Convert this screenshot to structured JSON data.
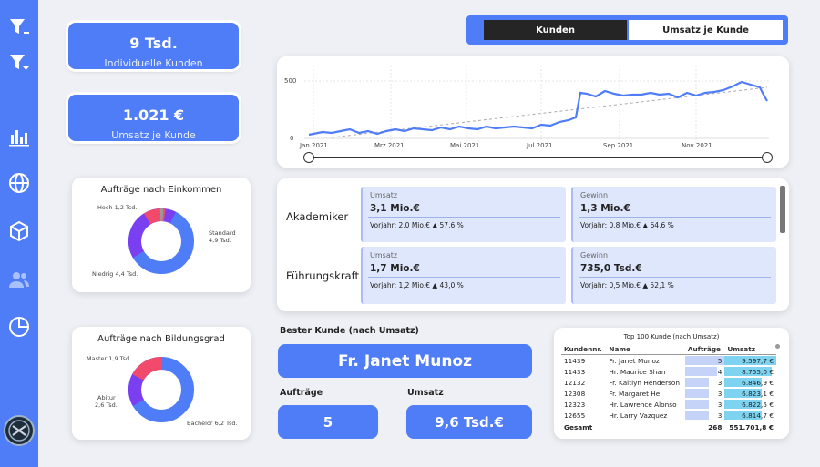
{
  "colors": {
    "accent": "#4f7cf7",
    "donut_blue": "#4f7cf7",
    "donut_purple": "#7b3ff2",
    "donut_red": "#f24a6b",
    "donut_gray": "#999999"
  },
  "sidebar": {
    "icons": [
      "filter-clear-icon",
      "filter-dropdown-icon",
      "bar-chart-icon",
      "globe-icon",
      "cube-icon",
      "users-icon",
      "pie-chart-icon"
    ]
  },
  "kpis": [
    {
      "value": "9 Tsd.",
      "label": "Individuelle Kunden"
    },
    {
      "value": "1.021 €",
      "label": "Umsatz je Kunde"
    }
  ],
  "toggle": {
    "active": "Kunden",
    "inactive": "Umsatz je Kunde"
  },
  "line_chart": {
    "y_ticks": [
      "500",
      "0"
    ],
    "x_ticks": [
      "Jan 2021",
      "Mrz 2021",
      "Mai 2021",
      "Jul 2021",
      "Sep 2021",
      "Nov 2021"
    ]
  },
  "donut_income": {
    "title": "Aufträge nach Einkommen",
    "labels": {
      "high": "Hoch 1,2 Tsd.",
      "standard": "Standard",
      "standard_val": "4,9 Tsd.",
      "low": "Niedrig 4,4 Tsd."
    }
  },
  "donut_education": {
    "title": "Aufträge nach Bildungsgrad",
    "labels": {
      "master": "Master 1,9 Tsd.",
      "abitur": "Abitur",
      "abitur_val": "2,6 Tsd.",
      "bachelor": "Bachelor 6,2 Tsd."
    }
  },
  "metrics": {
    "rows": [
      {
        "label": "Akademiker",
        "umsatz": {
          "title": "Umsatz",
          "value": "3,1 Mio.€",
          "prev": "Vorjahr: 2,0 Mio.€ ▲ 57,6 %"
        },
        "gewinn": {
          "title": "Gewinn",
          "value": "1,3 Mio.€",
          "prev": "Vorjahr: 0,8 Mio.€ ▲ 64,6 %"
        }
      },
      {
        "label": "Führungskraft",
        "umsatz": {
          "title": "Umsatz",
          "value": "1,7 Mio.€",
          "prev": "Vorjahr: 1,2 Mio.€ ▲ 43,0 %"
        },
        "gewinn": {
          "title": "Gewinn",
          "value": "735,0 Tsd.€",
          "prev": "Vorjahr: 0,5 Mio.€ ▲ 52,1 %"
        }
      }
    ]
  },
  "best_customer": {
    "heading": "Bester Kunde (nach Umsatz)",
    "name": "Fr. Janet Munoz",
    "orders_label": "Aufträge",
    "orders_value": "5",
    "revenue_label": "Umsatz",
    "revenue_value": "9,6 Tsd.€"
  },
  "top100": {
    "title": "Top 100 Kunde (nach Umsatz)",
    "headers": [
      "Kundennr.",
      "Name",
      "Aufträge",
      "Umsatz"
    ],
    "rows": [
      {
        "id": "11439",
        "name": "Fr. Janet Munoz",
        "orders": "5",
        "revenue": "9.597,7 €",
        "orders_frac": 1.0,
        "rev_frac": 1.0
      },
      {
        "id": "11433",
        "name": "Hr. Maurice Shan",
        "orders": "4",
        "revenue": "8.755,0 €",
        "orders_frac": 0.8,
        "rev_frac": 0.91
      },
      {
        "id": "12132",
        "name": "Fr. Kaitlyn Henderson",
        "orders": "3",
        "revenue": "6.846,9 €",
        "orders_frac": 0.6,
        "rev_frac": 0.71
      },
      {
        "id": "12308",
        "name": "Fr. Margaret He",
        "orders": "3",
        "revenue": "6.823,1 €",
        "orders_frac": 0.6,
        "rev_frac": 0.71
      },
      {
        "id": "12323",
        "name": "Hr. Lawrence Alonso",
        "orders": "3",
        "revenue": "6.822,5 €",
        "orders_frac": 0.6,
        "rev_frac": 0.71
      },
      {
        "id": "12655",
        "name": "Hr. Larry Vazquez",
        "orders": "3",
        "revenue": "6.814,7 €",
        "orders_frac": 0.6,
        "rev_frac": 0.71
      }
    ],
    "total": {
      "label": "Gesamt",
      "orders": "268",
      "revenue": "551.701,8 €"
    }
  }
}
